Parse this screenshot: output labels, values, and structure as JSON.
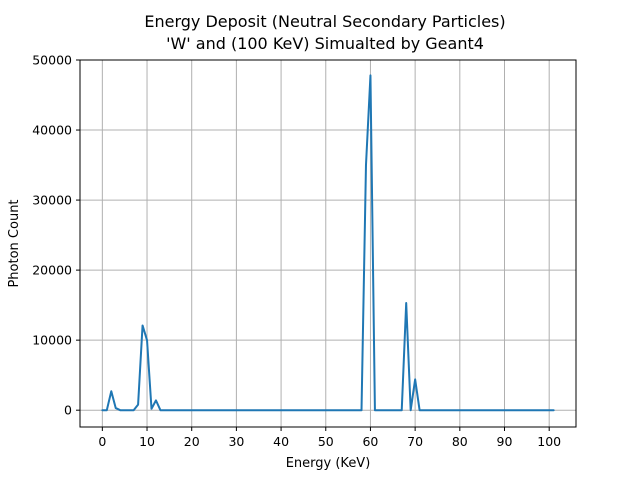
{
  "chart_data": {
    "type": "line",
    "title": [
      "Energy Deposit (Neutral Secondary Particles)",
      "'W' and (100 KeV) Simualted by Geant4"
    ],
    "xlabel": "Energy (KeV)",
    "ylabel": "Photon Count",
    "xlim": [
      -5,
      106
    ],
    "ylim": [
      -2400,
      50000
    ],
    "xticks": [
      0,
      10,
      20,
      30,
      40,
      50,
      60,
      70,
      80,
      90,
      100
    ],
    "yticks": [
      0,
      10000,
      20000,
      30000,
      40000,
      50000
    ],
    "grid": true,
    "series_color": "#1f77b4",
    "series": [
      {
        "x": [
          0,
          1,
          2,
          3,
          4,
          5,
          6,
          7,
          8,
          9,
          10,
          11,
          12,
          13,
          14,
          15,
          20,
          30,
          40,
          50,
          55,
          58,
          59,
          60,
          61,
          62,
          65,
          67,
          68,
          69,
          70,
          71,
          72,
          75,
          80,
          90,
          100,
          101
        ],
        "y": [
          0,
          0,
          2700,
          300,
          0,
          0,
          0,
          0,
          800,
          12100,
          10000,
          200,
          1400,
          0,
          0,
          0,
          0,
          0,
          0,
          0,
          0,
          0,
          35000,
          47800,
          0,
          0,
          0,
          0,
          15300,
          0,
          4400,
          0,
          0,
          0,
          0,
          0,
          0,
          0
        ]
      }
    ]
  }
}
